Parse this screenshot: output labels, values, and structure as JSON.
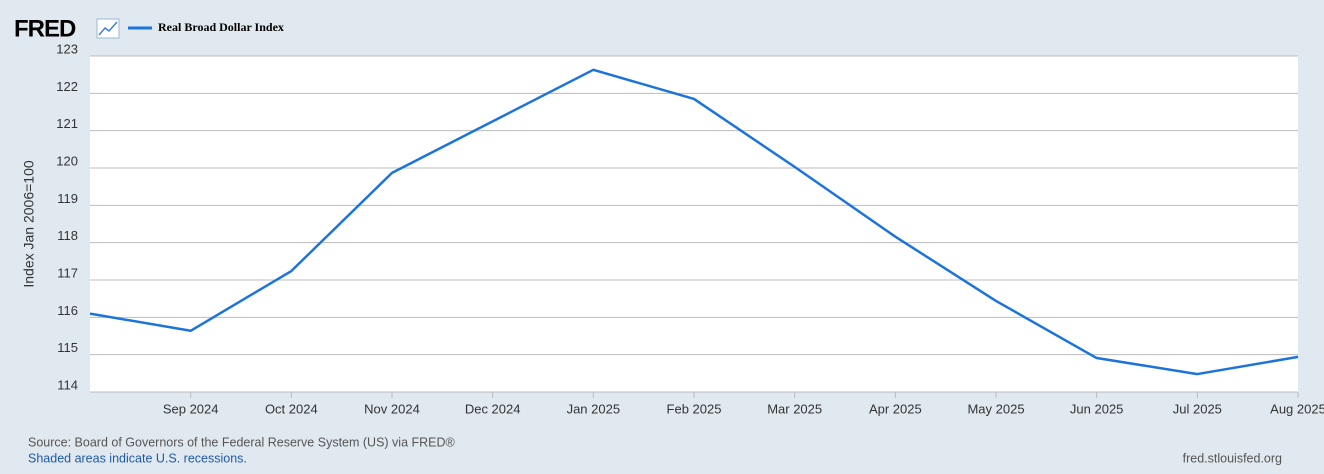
{
  "logo": "FRED",
  "source": "Source: Board of Governors of the Federal Reserve System (US) via FRED®",
  "note": "Shaded areas indicate U.S. recessions.",
  "site": "fred.stlouisfed.org",
  "chart_data": {
    "type": "line",
    "y_label": "Index Jan 2006=100",
    "categories": [
      null,
      "Sep 2024",
      "Oct 2024",
      "Nov 2024",
      "Dec 2024",
      "Jan 2025",
      "Feb 2025",
      "Mar 2025",
      "Apr 2025",
      "May 2025",
      "Jun 2025",
      "Jul 2025",
      "Aug 2025"
    ],
    "series": [
      {
        "name": "Real Broad Dollar Index",
        "color": "#1c74db",
        "values": [
          116.1,
          115.64,
          117.24,
          119.87,
          121.25,
          122.63,
          121.85,
          120.03,
          118.16,
          116.44,
          114.91,
          114.48,
          114.94
        ]
      }
    ],
    "ylim": [
      114,
      123
    ],
    "yticks": [
      114,
      115,
      116,
      117,
      118,
      119,
      120,
      121,
      122,
      123
    ],
    "grid": true
  }
}
